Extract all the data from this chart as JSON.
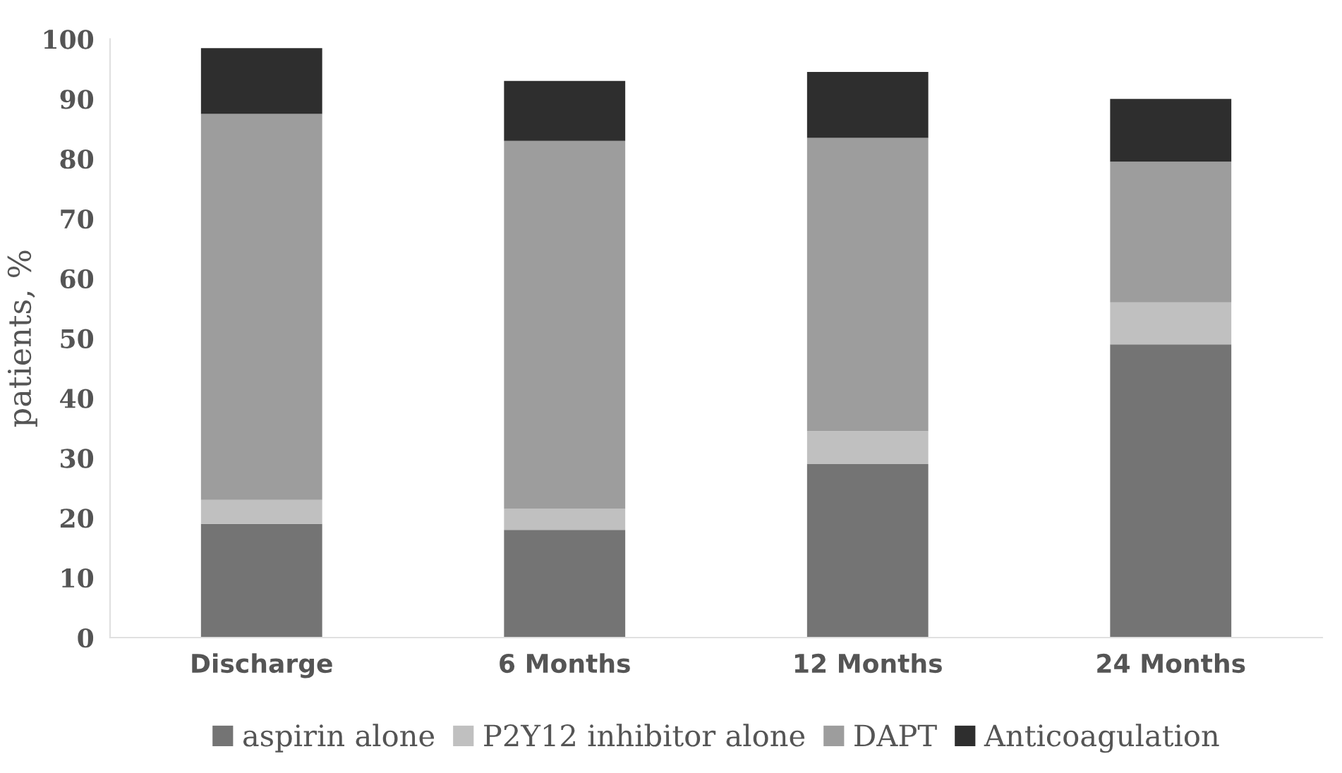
{
  "chart_data": {
    "type": "bar",
    "stacked": true,
    "ylabel": "patients, %",
    "categories": [
      "Discharge",
      "6 Months",
      "12 Months",
      "24 Months"
    ],
    "series": [
      {
        "name": "aspirin alone",
        "color": "#747474",
        "values": [
          19,
          18,
          29,
          49
        ]
      },
      {
        "name": "P2Y12 inhibitor alone",
        "color": "#c0c0c0",
        "values": [
          4,
          3.5,
          5.5,
          7
        ]
      },
      {
        "name": "DAPT",
        "color": "#9d9d9d",
        "values": [
          64.5,
          61.5,
          49,
          23.5
        ]
      },
      {
        "name": "Anticoagulation",
        "color": "#2e2e2e",
        "values": [
          11,
          10,
          11,
          10.5
        ]
      }
    ],
    "ylim": [
      0,
      100
    ],
    "yticks": [
      0,
      10,
      20,
      30,
      40,
      50,
      60,
      70,
      80,
      90,
      100
    ],
    "grid": false,
    "legend": "bottom"
  }
}
